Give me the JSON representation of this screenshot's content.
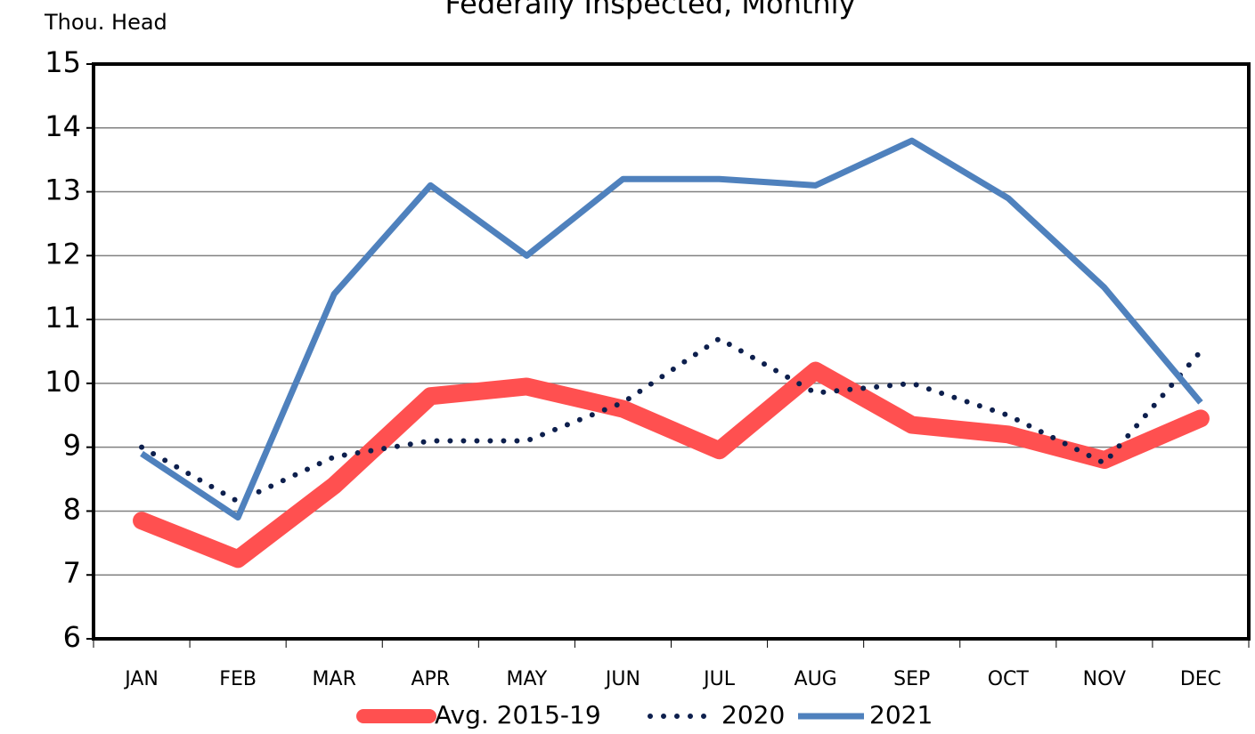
{
  "chart_data": {
    "type": "line",
    "title": "Federally Inspected, Monthly",
    "y_label": "Thou. Head",
    "categories": [
      "JAN",
      "FEB",
      "MAR",
      "APR",
      "MAY",
      "JUN",
      "JUL",
      "AUG",
      "SEP",
      "OCT",
      "NOV",
      "DEC"
    ],
    "series": [
      {
        "name": "Avg. 2015-19",
        "color": "#ff5050",
        "style": "thick",
        "values": [
          7.85,
          7.25,
          8.4,
          9.8,
          9.95,
          9.6,
          8.95,
          10.2,
          9.35,
          9.2,
          8.8,
          9.45
        ]
      },
      {
        "name": "2020",
        "color": "#0d1f4d",
        "style": "dotted",
        "values": [
          9.0,
          8.15,
          8.85,
          9.1,
          9.1,
          9.7,
          10.7,
          9.85,
          10.0,
          9.5,
          8.75,
          10.5
        ]
      },
      {
        "name": "2021",
        "color": "#4f81bd",
        "style": "solid",
        "values": [
          8.9,
          7.9,
          11.4,
          13.1,
          12.0,
          13.2,
          13.2,
          13.1,
          13.8,
          12.9,
          11.5,
          9.7
        ]
      }
    ],
    "ylim": [
      6,
      15
    ],
    "yticks": [
      6,
      7,
      8,
      9,
      10,
      11,
      12,
      13,
      14,
      15
    ],
    "grid": true,
    "legend": "bottom"
  }
}
